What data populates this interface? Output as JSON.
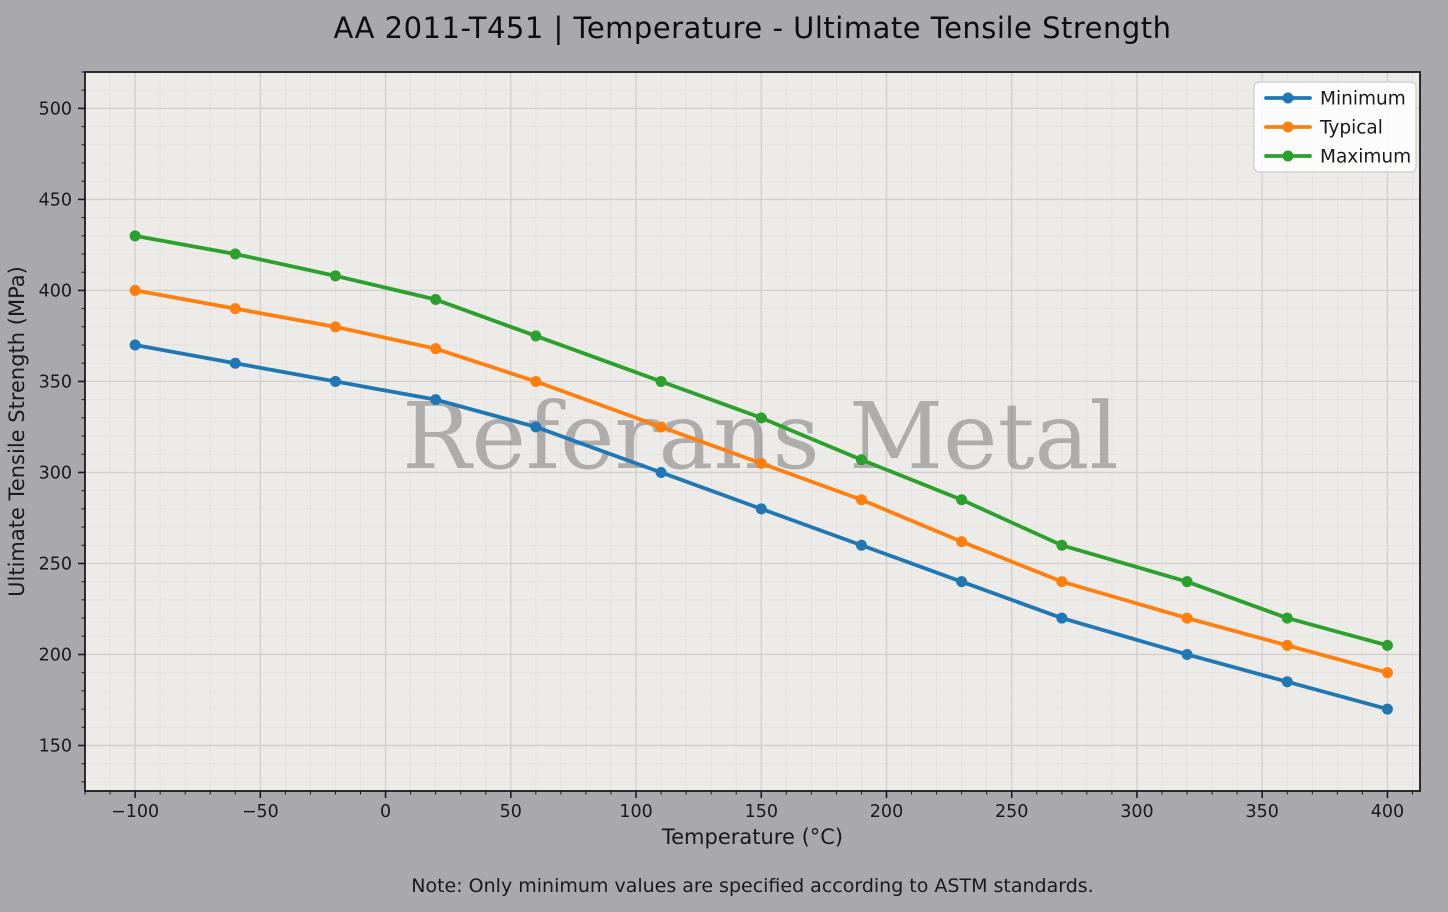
{
  "title": "AA 2011-T451 | Temperature - Ultimate Tensile Strength",
  "watermark": "Referans Metal",
  "note": "Note: Only minimum values are specified according to ASTM standards.",
  "chart_data": {
    "type": "line",
    "title": "AA 2011-T451 | Temperature - Ultimate Tensile Strength",
    "xlabel": "Temperature (°C)",
    "ylabel": "Ultimate Tensile Strength (MPa)",
    "x": [
      -100,
      -60,
      -20,
      20,
      60,
      110,
      150,
      190,
      230,
      270,
      320,
      360,
      400
    ],
    "series": [
      {
        "name": "Minimum",
        "color": "#1f77b4",
        "values": [
          370,
          360,
          350,
          340,
          325,
          300,
          280,
          260,
          240,
          220,
          200,
          185,
          170
        ]
      },
      {
        "name": "Typical",
        "color": "#ff7f0e",
        "values": [
          400,
          390,
          380,
          368,
          350,
          325,
          305,
          285,
          262,
          240,
          220,
          205,
          190
        ]
      },
      {
        "name": "Maximum",
        "color": "#2ca02c",
        "values": [
          430,
          420,
          408,
          395,
          375,
          350,
          330,
          307,
          285,
          260,
          240,
          220,
          205
        ]
      }
    ],
    "xlim": [
      -120,
      413
    ],
    "ylim": [
      125,
      520
    ],
    "x_ticks": [
      -100,
      -50,
      0,
      50,
      100,
      150,
      200,
      250,
      300,
      350,
      400
    ],
    "y_ticks": [
      150,
      200,
      250,
      300,
      350,
      400,
      450,
      500
    ],
    "minor_tick_step": 10,
    "grid": true,
    "legend_position": "upper right",
    "plot_bg": "#edebe8",
    "grid_major_color": "#d3cfcc",
    "grid_minor_color": "#e2dfdc"
  }
}
